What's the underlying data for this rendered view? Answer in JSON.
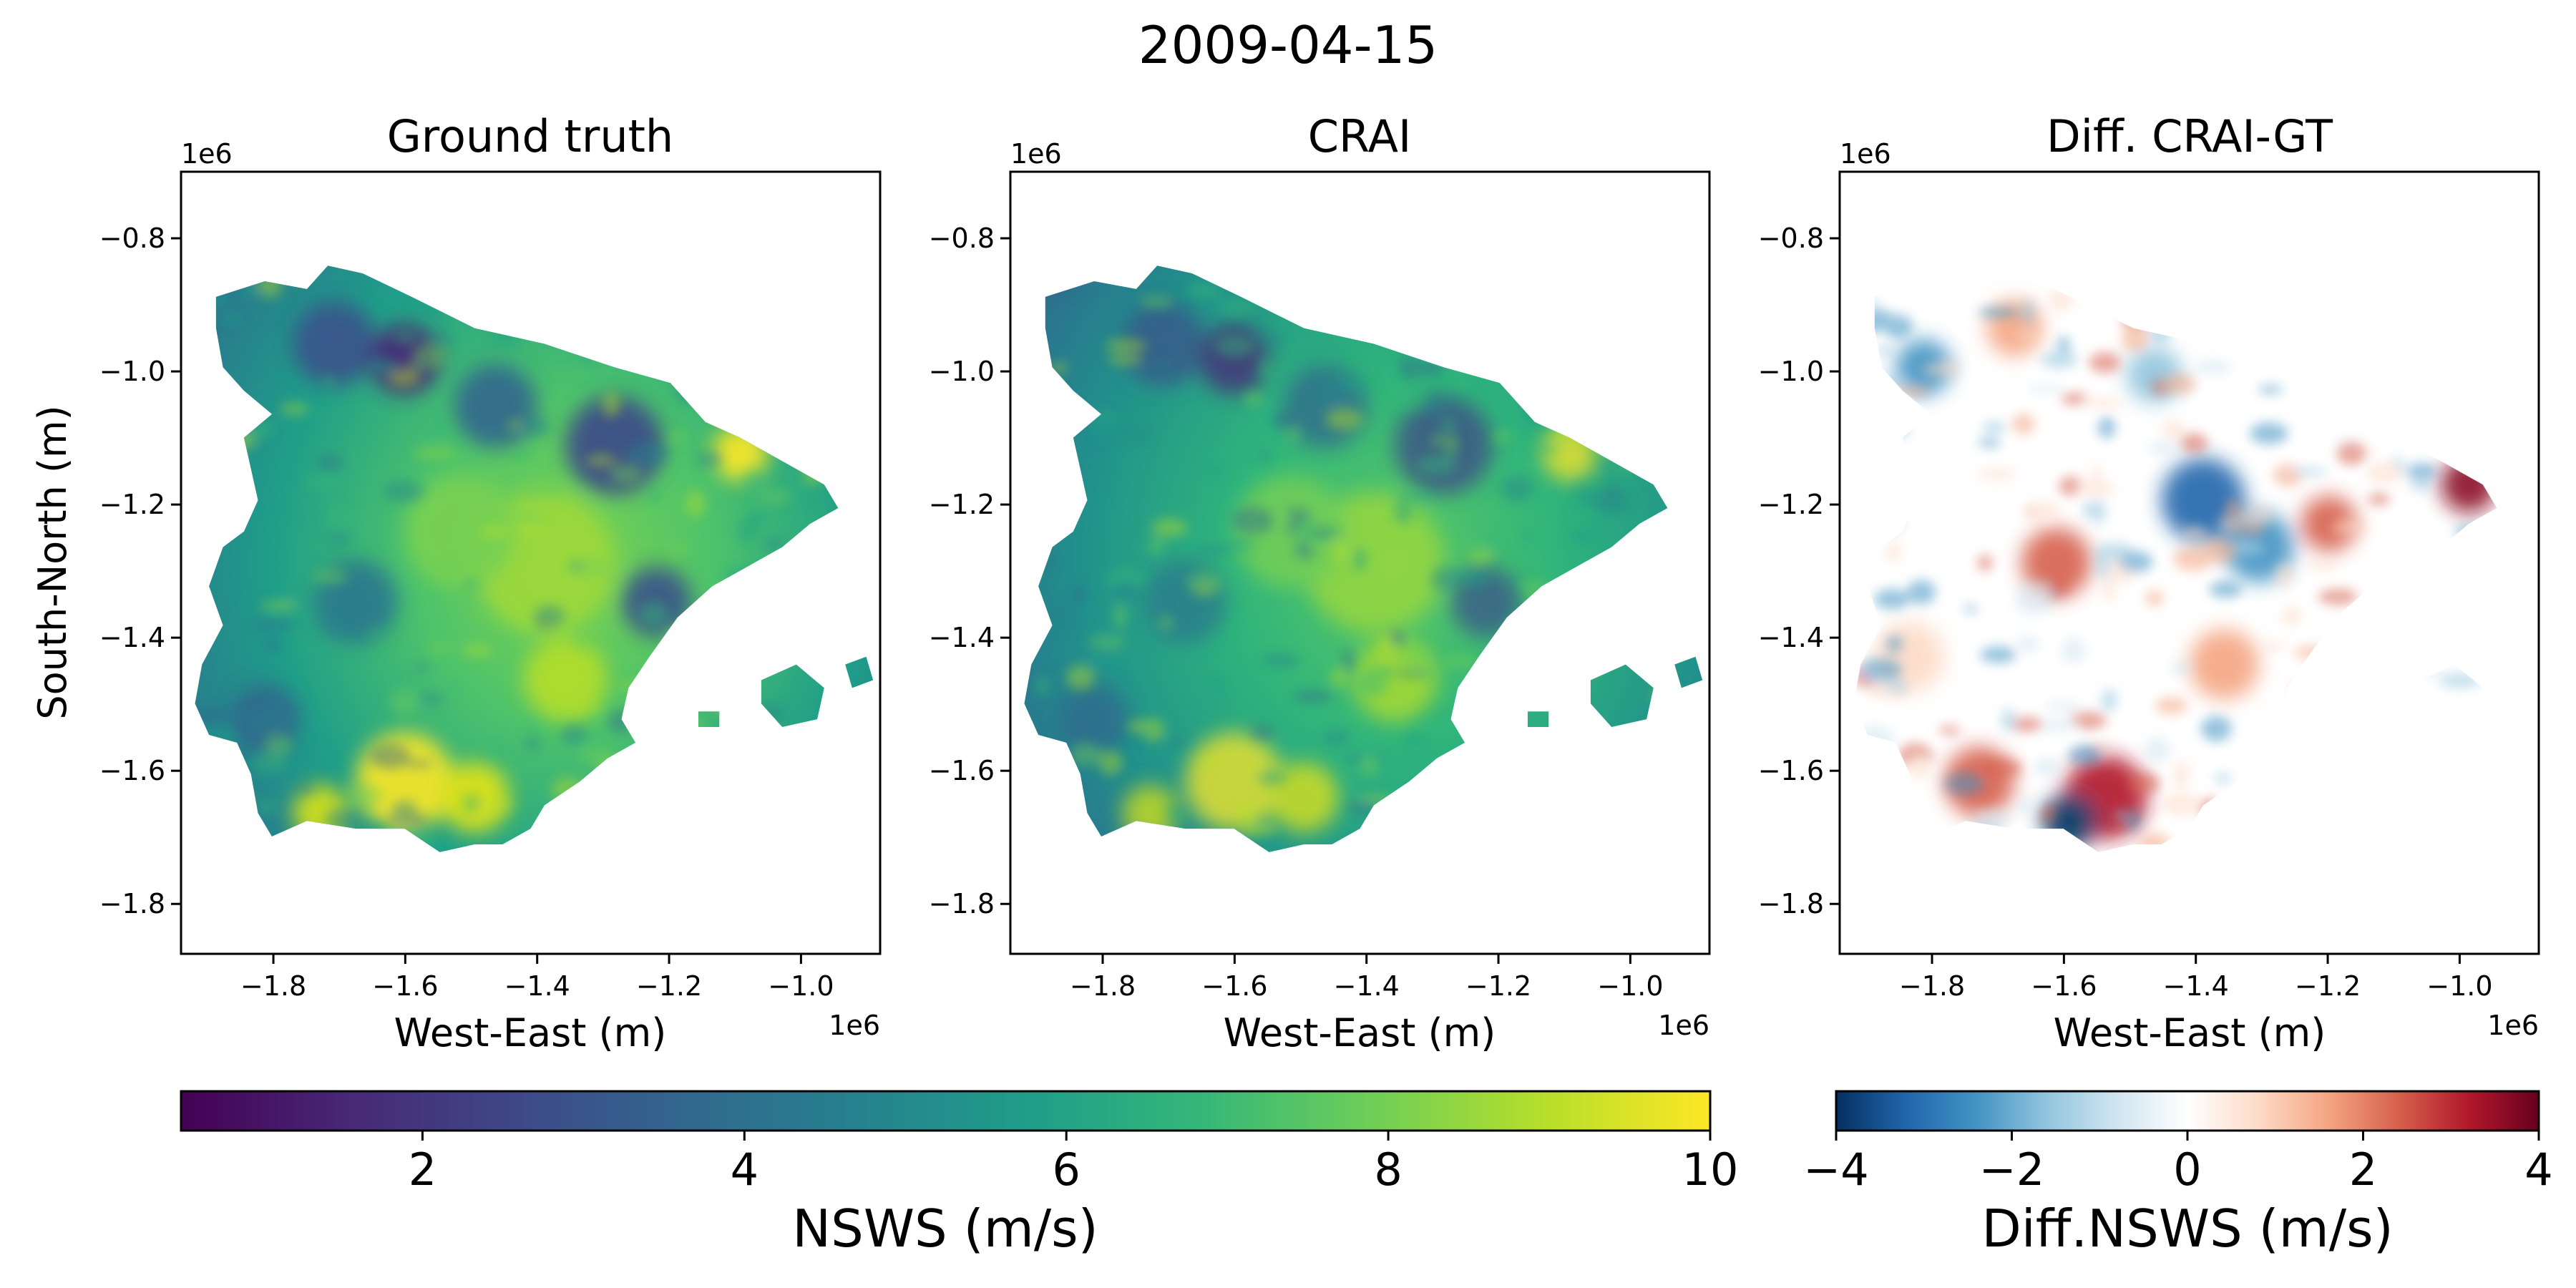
{
  "figure": {
    "title": "2009-04-15"
  },
  "chart_data": [
    {
      "type": "heatmap",
      "title": "Ground truth",
      "xlabel": "West-East (m)",
      "ylabel": "South-North (m)",
      "x_offset": "1e6",
      "y_offset": "1e6",
      "xlim": [
        -1.94,
        -0.88
      ],
      "ylim": [
        -1.875,
        -0.7
      ],
      "xticks": [
        -1.8,
        -1.6,
        -1.4,
        -1.2,
        -1.0
      ],
      "xtick_labels": [
        "−1.8",
        "−1.6",
        "−1.4",
        "−1.2",
        "−1.0"
      ],
      "yticks": [
        -0.8,
        -1.0,
        -1.2,
        -1.4,
        -1.6,
        -1.8
      ],
      "ytick_labels": [
        "−0.8",
        "−1.0",
        "−1.2",
        "−1.4",
        "−1.6",
        "−1.8"
      ],
      "colormap": "viridis",
      "variable": "NSWS (m/s)"
    },
    {
      "type": "heatmap",
      "title": "CRAI",
      "xlabel": "West-East (m)",
      "ylabel": "",
      "x_offset": "1e6",
      "y_offset": "1e6",
      "xlim": [
        -1.94,
        -0.88
      ],
      "ylim": [
        -1.875,
        -0.7
      ],
      "xticks": [
        -1.8,
        -1.6,
        -1.4,
        -1.2,
        -1.0
      ],
      "xtick_labels": [
        "−1.8",
        "−1.6",
        "−1.4",
        "−1.2",
        "−1.0"
      ],
      "yticks": [
        -0.8,
        -1.0,
        -1.2,
        -1.4,
        -1.6,
        -1.8
      ],
      "ytick_labels": [
        "−0.8",
        "−1.0",
        "−1.2",
        "−1.4",
        "−1.6",
        "−1.8"
      ],
      "colormap": "viridis",
      "variable": "NSWS (m/s)"
    },
    {
      "type": "heatmap",
      "title": "Diff. CRAI-GT",
      "xlabel": "West-East (m)",
      "ylabel": "",
      "x_offset": "1e6",
      "y_offset": "1e6",
      "xlim": [
        -1.94,
        -0.88
      ],
      "ylim": [
        -1.875,
        -0.7
      ],
      "xticks": [
        -1.8,
        -1.6,
        -1.4,
        -1.2,
        -1.0
      ],
      "xtick_labels": [
        "−1.8",
        "−1.6",
        "−1.4",
        "−1.2",
        "−1.0"
      ],
      "yticks": [
        -0.8,
        -1.0,
        -1.2,
        -1.4,
        -1.6,
        -1.8
      ],
      "ytick_labels": [
        "−0.8",
        "−1.0",
        "−1.2",
        "−1.4",
        "−1.6",
        "−1.8"
      ],
      "colormap": "RdBu_r",
      "variable": "Diff.NSWS (m/s)"
    }
  ],
  "colorbars": [
    {
      "label": "NSWS (m/s)",
      "range": [
        0.5,
        10
      ],
      "ticks": [
        2,
        4,
        6,
        8,
        10
      ],
      "tick_labels": [
        "2",
        "4",
        "6",
        "8",
        "10"
      ],
      "colormap": "viridis",
      "colors": [
        "#440154",
        "#482878",
        "#3e4989",
        "#31688e",
        "#26828e",
        "#1f9e89",
        "#35b779",
        "#6ece58",
        "#b5de2b",
        "#fde725"
      ]
    },
    {
      "label": "Diff.NSWS (m/s)",
      "range": [
        -4,
        4
      ],
      "ticks": [
        -4,
        -2,
        0,
        2,
        4
      ],
      "tick_labels": [
        "−4",
        "−2",
        "0",
        "2",
        "4"
      ],
      "colormap": "RdBu_r",
      "colors": [
        "#053061",
        "#2166ac",
        "#4393c3",
        "#92c5de",
        "#d1e5f0",
        "#ffffff",
        "#fddbc7",
        "#f4a582",
        "#d6604d",
        "#b2182b",
        "#67001f"
      ]
    }
  ]
}
